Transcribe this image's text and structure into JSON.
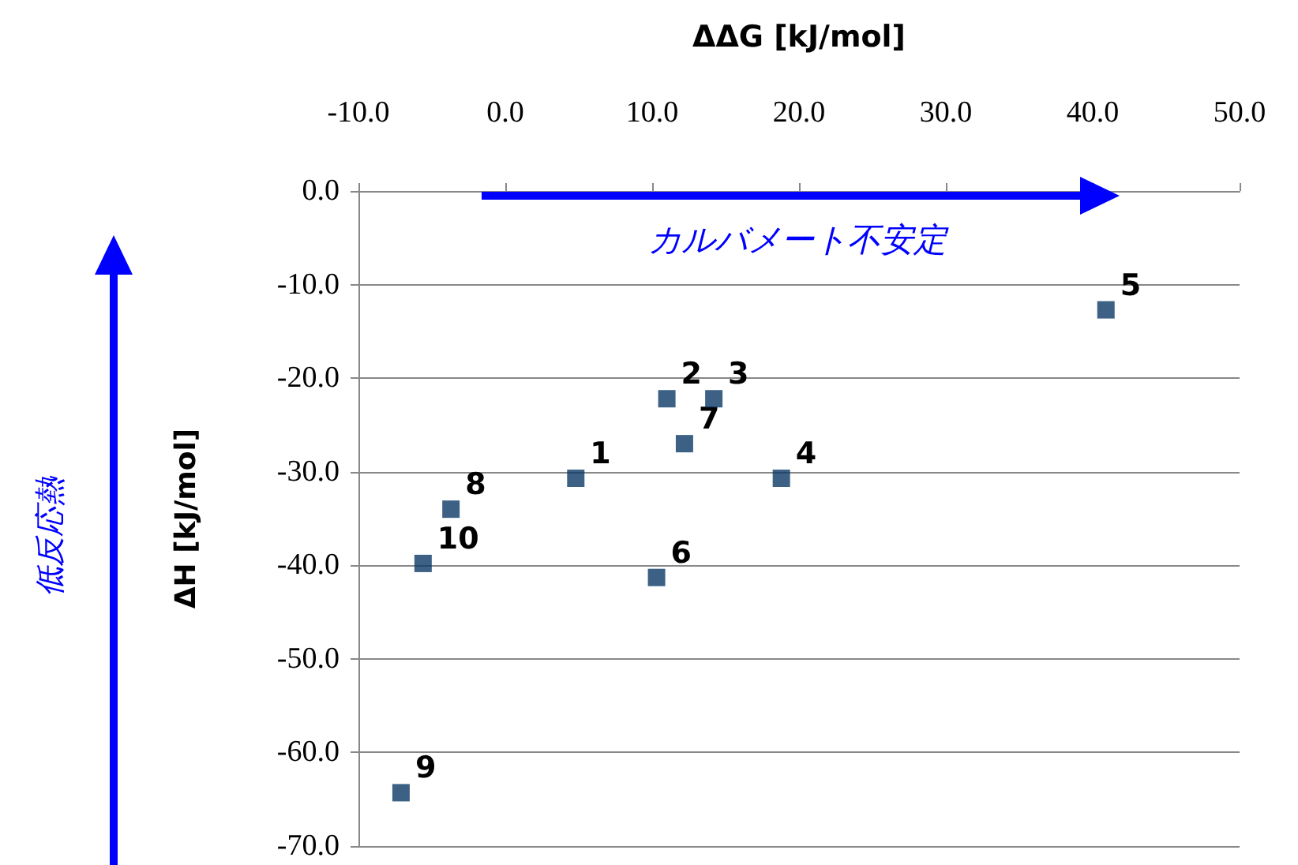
{
  "chart_data": {
    "type": "scatter",
    "xlabel": "ΔΔG [kJ/mol]",
    "ylabel": "ΔH [kJ/mol]",
    "x": [
      4.8,
      11.0,
      14.2,
      18.8,
      40.9,
      10.3,
      12.2,
      -3.7,
      -7.1,
      -5.6
    ],
    "series": [
      {
        "color": "#0b3a66",
        "values": [
          -30.7,
          -22.2,
          -22.2,
          -30.7,
          -12.7,
          -41.3,
          -27.0,
          -34.0,
          -64.3,
          -39.8
        ]
      }
    ],
    "xlim": [
      -10,
      50
    ],
    "xticks": [
      {
        "value": -10,
        "label": "-10.0"
      },
      {
        "value": 0,
        "label": "0.0"
      },
      {
        "value": 10,
        "label": "10.0"
      },
      {
        "value": 20,
        "label": "20.0"
      },
      {
        "value": 30,
        "label": "30.0"
      },
      {
        "value": 40,
        "label": "40.0"
      },
      {
        "value": 50,
        "label": "50.0"
      }
    ],
    "ylim": [
      -70,
      0
    ],
    "yticks": [
      {
        "value": 0,
        "label": "0.0"
      },
      {
        "value": -10,
        "label": "-10.0"
      },
      {
        "value": -20,
        "label": "-20.0"
      },
      {
        "value": -30,
        "label": "-30.0"
      },
      {
        "value": -40,
        "label": "-40.0"
      },
      {
        "value": -50,
        "label": "-50.0"
      },
      {
        "value": -60,
        "label": "-60.0"
      },
      {
        "value": -70,
        "label": "-70.0"
      }
    ],
    "grid": "y",
    "marker": "square",
    "annotations": [
      {
        "text": "1",
        "x": 4.8,
        "y": -30.7
      },
      {
        "text": "2",
        "x": 11.0,
        "y": -22.2
      },
      {
        "text": "3",
        "x": 14.2,
        "y": -22.2
      },
      {
        "text": "4",
        "x": 18.8,
        "y": -30.7
      },
      {
        "text": "5",
        "x": 40.9,
        "y": -12.7
      },
      {
        "text": "6",
        "x": 10.3,
        "y": -41.3
      },
      {
        "text": "7",
        "x": 12.2,
        "y": -27.0
      },
      {
        "text": "8",
        "x": -3.7,
        "y": -34.0
      },
      {
        "text": "9",
        "x": -7.1,
        "y": -64.3
      },
      {
        "text": "10",
        "x": -5.6,
        "y": -39.8
      },
      "カルバメート不安定",
      "低反応熱"
    ]
  }
}
